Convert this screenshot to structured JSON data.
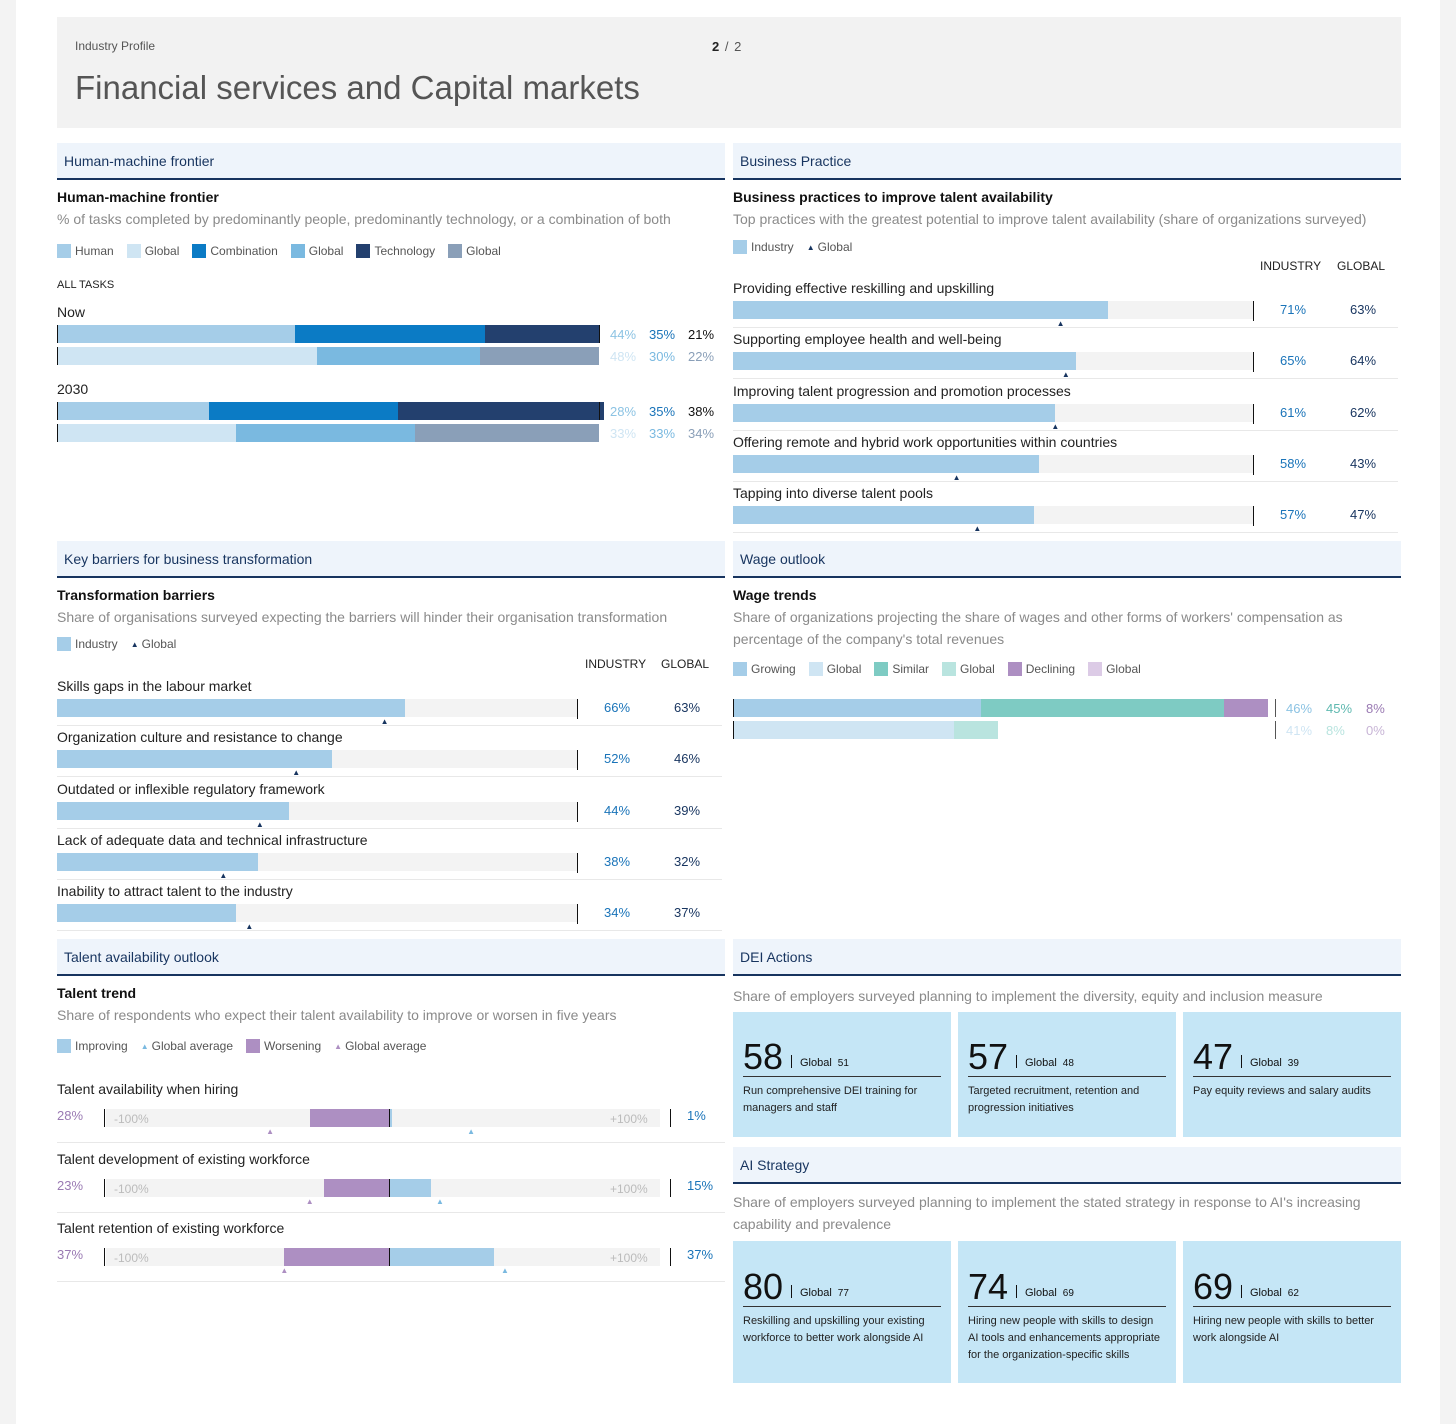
{
  "header": {
    "breadcrumb": "Industry Profile",
    "page_current": "2",
    "page_sep": "/",
    "page_total": "2",
    "title": "Financial services and Capital markets"
  },
  "hmf": {
    "section": "Human-machine frontier",
    "title": "Human-machine frontier",
    "subtitle": "% of tasks completed by predominantly people, predominantly technology, or a combination of both",
    "legend": [
      "Human",
      "Global",
      "Combination",
      "Global",
      "Technology",
      "Global"
    ],
    "all_tasks": "ALL TASKS",
    "colors": {
      "human": "#a5cde8",
      "human_g": "#cfe5f3",
      "combo": "#0b7bc5",
      "combo_g": "#7ab9e0",
      "tech": "#23406e",
      "tech_g": "#8a9fb8"
    }
  },
  "bp": {
    "section": "Business Practice",
    "title": "Business practices to improve talent availability",
    "subtitle": "Top practices with the greatest potential to improve talent availability (share of organizations surveyed)",
    "legend_industry": "Industry",
    "legend_global": "Global",
    "col_industry": "INDUSTRY",
    "col_global": "GLOBAL"
  },
  "kb": {
    "section": "Key barriers for business transformation",
    "title": "Transformation barriers",
    "subtitle": "Share of organisations surveyed expecting the barriers will hinder their organisation transformation",
    "legend_industry": "Industry",
    "legend_global": "Global",
    "col_industry": "INDUSTRY",
    "col_global": "GLOBAL"
  },
  "wo": {
    "section": "Wage outlook",
    "title": "Wage trends",
    "subtitle": "Share of organizations projecting the share of wages and other forms of workers' compensation as percentage of the company's total revenues",
    "legend": [
      "Growing",
      "Global",
      "Similar",
      "Global",
      "Declining",
      "Global"
    ],
    "colors": {
      "grow": "#a5cde8",
      "grow_g": "#cfe5f3",
      "sim": "#7ecbc3",
      "sim_g": "#b9e4df",
      "dec": "#ad8fc2",
      "dec_g": "#dccbe6"
    }
  },
  "ta": {
    "section": "Talent availability outlook",
    "title": "Talent trend",
    "subtitle": "Share of respondents who expect their talent availability to improve or worsen in five years",
    "legend": [
      "Improving",
      "Global average",
      "Worsening",
      "Global average"
    ],
    "axis_min": "-100%",
    "axis_max": "+100%"
  },
  "dei": {
    "section": "DEI Actions",
    "subtitle": "Share of employers surveyed planning to implement the diversity, equity and inclusion measure",
    "cards": [
      {
        "value": "58",
        "global_label": "Global",
        "global_value": "51",
        "desc": "Run comprehensive DEI training for managers and staff"
      },
      {
        "value": "57",
        "global_label": "Global",
        "global_value": "48",
        "desc": "Targeted recruitment, retention and progression initiatives"
      },
      {
        "value": "47",
        "global_label": "Global",
        "global_value": "39",
        "desc": "Pay equity reviews and salary audits"
      }
    ]
  },
  "ai": {
    "section": "AI Strategy",
    "subtitle": "Share of employers surveyed planning to implement the stated strategy in response to AI's increasing capability and prevalence",
    "cards": [
      {
        "value": "80",
        "global_label": "Global",
        "global_value": "77",
        "desc": "Reskilling and upskilling your existing workforce to better work alongside AI"
      },
      {
        "value": "74",
        "global_label": "Global",
        "global_value": "69",
        "desc": "Hiring new people with skills to design AI tools and enhancements appropriate for the organization-specific skills"
      },
      {
        "value": "69",
        "global_label": "Global",
        "global_value": "62",
        "desc": "Hiring new people with skills to better work alongside AI"
      }
    ]
  },
  "chart_data": [
    {
      "type": "bar",
      "id": "hmf",
      "stacked": true,
      "title": "Human-machine frontier",
      "categories": [
        "Now",
        "2030"
      ],
      "series": [
        {
          "name": "Human",
          "industry": [
            44,
            28
          ],
          "global": [
            48,
            33
          ]
        },
        {
          "name": "Combination",
          "industry": [
            35,
            35
          ],
          "global": [
            30,
            33
          ]
        },
        {
          "name": "Technology",
          "industry": [
            21,
            38
          ],
          "global": [
            22,
            34
          ]
        }
      ],
      "labels": {
        "Now": {
          "industry": [
            "44%",
            "35%",
            "21%"
          ],
          "global": [
            "48%",
            "30%",
            "22%"
          ]
        },
        "2030": {
          "industry": [
            "28%",
            "35%",
            "38%"
          ],
          "global": [
            "33%",
            "33%",
            "34%"
          ]
        }
      }
    },
    {
      "type": "bar",
      "id": "bp",
      "title": "Business practices to improve talent availability",
      "xlim": [
        0,
        100
      ],
      "categories": [
        "Providing effective reskilling and upskilling",
        "Supporting employee health and well-being",
        "Improving talent progression and promotion processes",
        "Offering remote and hybrid work opportunities within countries",
        "Tapping into diverse talent pools"
      ],
      "industry": [
        71,
        65,
        61,
        58,
        57
      ],
      "global": [
        63,
        64,
        62,
        43,
        47
      ],
      "industry_labels": [
        "71%",
        "65%",
        "61%",
        "58%",
        "57%"
      ],
      "global_labels": [
        "63%",
        "64%",
        "62%",
        "43%",
        "47%"
      ]
    },
    {
      "type": "bar",
      "id": "kb",
      "title": "Transformation barriers",
      "xlim": [
        0,
        100
      ],
      "categories": [
        "Skills gaps in the labour market",
        "Organization culture and resistance to change",
        "Outdated or inflexible regulatory framework",
        "Lack of adequate data and technical infrastructure",
        "Inability to attract talent to the industry"
      ],
      "industry": [
        66,
        52,
        44,
        38,
        34
      ],
      "global": [
        63,
        46,
        39,
        32,
        37
      ],
      "industry_labels": [
        "66%",
        "52%",
        "44%",
        "38%",
        "34%"
      ],
      "global_labels": [
        "63%",
        "46%",
        "39%",
        "32%",
        "37%"
      ]
    },
    {
      "type": "bar",
      "id": "wo",
      "stacked": true,
      "title": "Wage trends",
      "series": [
        {
          "name": "Growing",
          "industry": 46,
          "global": 41
        },
        {
          "name": "Similar",
          "industry": 45,
          "global": 8
        },
        {
          "name": "Declining",
          "industry": 8,
          "global": 0
        }
      ],
      "industry_labels": [
        "46%",
        "45%",
        "8%"
      ],
      "global_labels": [
        "41%",
        "8%",
        "0%"
      ]
    },
    {
      "type": "bar",
      "id": "ta",
      "title": "Talent trend",
      "xlim": [
        -100,
        100
      ],
      "categories": [
        "Talent availability when hiring",
        "Talent development of existing workforce",
        "Talent retention of existing workforce"
      ],
      "worsening": [
        28,
        23,
        37
      ],
      "improving": [
        1,
        15,
        37
      ],
      "worsening_labels": [
        "28%",
        "23%",
        "37%"
      ],
      "improving_labels": [
        "1%",
        "15%",
        "37%"
      ],
      "global_worsening": [
        42,
        28,
        37
      ],
      "global_improving": [
        29,
        18,
        41
      ]
    }
  ]
}
